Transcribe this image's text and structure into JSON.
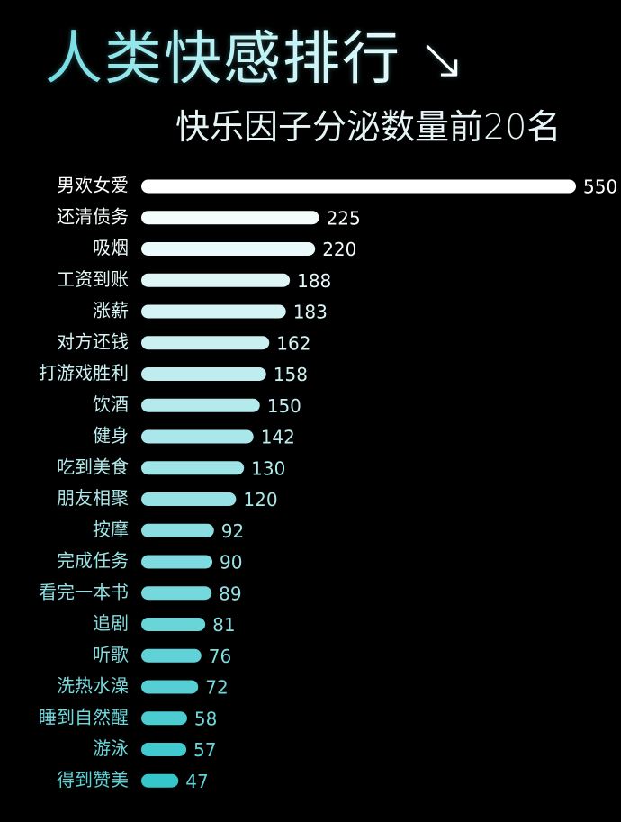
{
  "header": {
    "title": "人类快感排行",
    "title_arrow": "↘",
    "subtitle": "快乐因子分泌数量前20名"
  },
  "colors": {
    "background": "#000000",
    "bar_top": "#ffffff",
    "bar_bottom": "#35c6cc",
    "label_top": "#ffffff",
    "label_bottom": "#5fd2d6"
  },
  "chart_data": {
    "type": "bar",
    "orientation": "horizontal",
    "title": "人类快感排行",
    "subtitle": "快乐因子分泌数量前20名",
    "xlabel": "",
    "ylabel": "",
    "categories": [
      "男欢女爱",
      "还清债务",
      "吸烟",
      "工资到账",
      "涨薪",
      "对方还钱",
      "打游戏胜利",
      "饮酒",
      "健身",
      "吃到美食",
      "朋友相聚",
      "按摩",
      "完成任务",
      "看完一本书",
      "追剧",
      "听歌",
      "洗热水澡",
      "睡到自然醒",
      "游泳",
      "得到赞美"
    ],
    "values": [
      550,
      225,
      220,
      188,
      183,
      162,
      158,
      150,
      142,
      130,
      120,
      92,
      90,
      89,
      81,
      76,
      72,
      58,
      57,
      47
    ],
    "xlim": [
      0,
      550
    ],
    "grid": false,
    "legend": "none",
    "data_labels": true
  }
}
